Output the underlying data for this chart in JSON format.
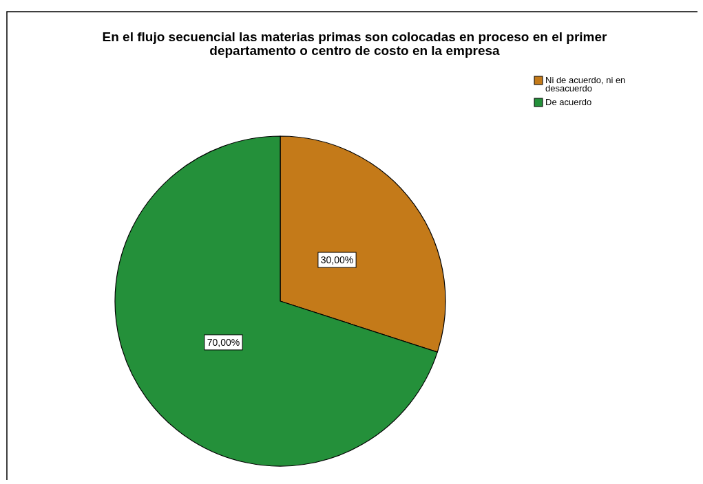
{
  "chart_data": {
    "type": "pie",
    "title": "En el flujo secuencial las materias primas son colocadas en proceso en el primer departamento o centro de costo en la empresa",
    "categories": [
      "Ni de acuerdo, ni en desacuerdo",
      "De acuerdo"
    ],
    "values": [
      30,
      70
    ],
    "colors": [
      "#c47a19",
      "#24903a"
    ],
    "value_labels": [
      "30,00%",
      "70,00%"
    ],
    "legend": "top right"
  }
}
